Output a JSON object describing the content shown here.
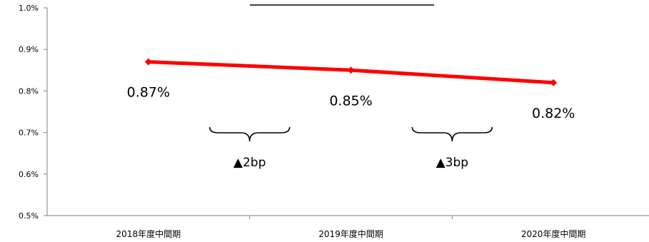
{
  "chart_data": {
    "type": "line",
    "title": "",
    "xlabel": "",
    "ylabel": "",
    "categories": [
      "2018年度中間期",
      "2019年度中間期",
      "2020年度中間期"
    ],
    "series": [
      {
        "values": [
          0.87,
          0.85,
          0.82
        ],
        "labels": [
          "0.87%",
          "0.85%",
          "0.82%"
        ],
        "color": "#ff0000"
      }
    ],
    "ylim": [
      0.5,
      1.0
    ],
    "yticks": [
      0.5,
      0.6,
      0.7,
      0.8,
      0.9,
      1.0
    ],
    "ytick_labels": [
      "0.5%",
      "0.6%",
      "0.7%",
      "0.8%",
      "0.9%",
      "1.0%"
    ],
    "grid": false,
    "annotations": [
      {
        "text": "▲2bp",
        "between": [
          0,
          1
        ]
      },
      {
        "text": "▲3bp",
        "between": [
          1,
          2
        ]
      }
    ]
  }
}
